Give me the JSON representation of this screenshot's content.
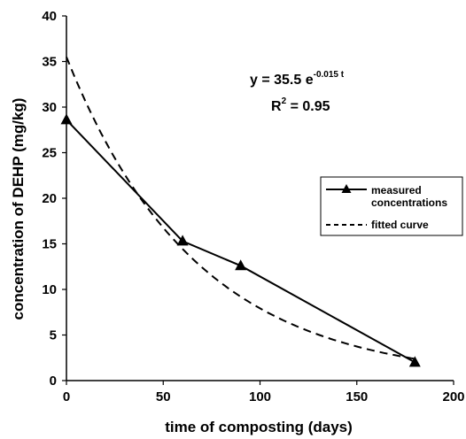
{
  "chart_data": {
    "type": "line",
    "xlabel": "time of composting (days)",
    "ylabel": "concentration of DEHP (mg/kg)",
    "xlim": [
      0,
      200
    ],
    "ylim": [
      0,
      40
    ],
    "x_ticks": [
      0,
      50,
      100,
      150,
      200
    ],
    "y_ticks": [
      0,
      5,
      10,
      15,
      20,
      25,
      30,
      35,
      40
    ],
    "grid": false,
    "legend_position": "right",
    "series": [
      {
        "name": "measured concentrations",
        "style": "solid",
        "marker": "triangle",
        "x": [
          0,
          60,
          90,
          180
        ],
        "y": [
          28.6,
          15.3,
          12.6,
          2.0
        ]
      },
      {
        "name": "fitted curve",
        "style": "dashed",
        "function": {
          "a": 35.5,
          "b": -0.015
        },
        "x": [
          0,
          20,
          40,
          60,
          80,
          100,
          120,
          140,
          160,
          180
        ],
        "y": [
          35.5,
          26.3,
          19.5,
          14.4,
          10.7,
          7.9,
          5.9,
          4.3,
          3.2,
          2.4
        ]
      }
    ],
    "annotation": {
      "equation_base": "y = 35.5 e",
      "equation_exponent": "-0.015 t",
      "r_label": "R",
      "r_exponent": "2",
      "r_value": " = 0.95"
    }
  }
}
